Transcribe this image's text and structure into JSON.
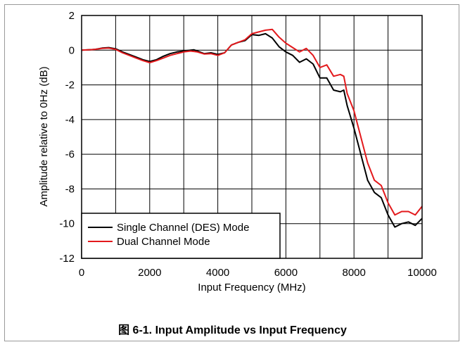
{
  "caption": "图 6-1. Input Amplitude vs Input Frequency",
  "chart_data": {
    "type": "line",
    "xlabel": "Input Frequency (MHz)",
    "ylabel": "Amplitude relative to 0Hz (dB)",
    "xlim": [
      0,
      10000
    ],
    "ylim": [
      -12,
      2
    ],
    "xticks": [
      0,
      2000,
      4000,
      6000,
      8000,
      10000
    ],
    "yticks": [
      2,
      0,
      -2,
      -4,
      -6,
      -8,
      -10,
      -12
    ],
    "x_grid_step": 1000,
    "grid": true,
    "legend_position": "bottom-left",
    "series": [
      {
        "name": "Single Channel (DES) Mode",
        "color": "#000000",
        "points": [
          [
            0,
            0
          ],
          [
            200,
            0.02
          ],
          [
            400,
            0.05
          ],
          [
            600,
            0.12
          ],
          [
            800,
            0.15
          ],
          [
            1000,
            0.08
          ],
          [
            1200,
            -0.1
          ],
          [
            1400,
            -0.25
          ],
          [
            1600,
            -0.4
          ],
          [
            1800,
            -0.55
          ],
          [
            2000,
            -0.65
          ],
          [
            2200,
            -0.55
          ],
          [
            2400,
            -0.35
          ],
          [
            2600,
            -0.2
          ],
          [
            2800,
            -0.1
          ],
          [
            3000,
            -0.05
          ],
          [
            3200,
            0.0
          ],
          [
            3300,
            0.02
          ],
          [
            3400,
            -0.05
          ],
          [
            3600,
            -0.2
          ],
          [
            3800,
            -0.15
          ],
          [
            4000,
            -0.25
          ],
          [
            4200,
            -0.15
          ],
          [
            4400,
            0.3
          ],
          [
            4600,
            0.45
          ],
          [
            4800,
            0.55
          ],
          [
            5000,
            0.9
          ],
          [
            5200,
            0.85
          ],
          [
            5400,
            0.95
          ],
          [
            5600,
            0.7
          ],
          [
            5800,
            0.2
          ],
          [
            6000,
            -0.1
          ],
          [
            6200,
            -0.3
          ],
          [
            6400,
            -0.7
          ],
          [
            6600,
            -0.5
          ],
          [
            6800,
            -0.8
          ],
          [
            7000,
            -1.6
          ],
          [
            7200,
            -1.6
          ],
          [
            7400,
            -2.3
          ],
          [
            7600,
            -2.4
          ],
          [
            7700,
            -2.3
          ],
          [
            7800,
            -3.2
          ],
          [
            8000,
            -4.5
          ],
          [
            8200,
            -6.0
          ],
          [
            8400,
            -7.5
          ],
          [
            8600,
            -8.2
          ],
          [
            8800,
            -8.5
          ],
          [
            9000,
            -9.5
          ],
          [
            9200,
            -10.2
          ],
          [
            9400,
            -10.0
          ],
          [
            9600,
            -9.9
          ],
          [
            9800,
            -10.1
          ],
          [
            10000,
            -9.7
          ]
        ]
      },
      {
        "name": "Dual Channel Mode",
        "color": "#e3191c",
        "points": [
          [
            0,
            0
          ],
          [
            200,
            0.02
          ],
          [
            400,
            0.05
          ],
          [
            600,
            0.1
          ],
          [
            800,
            0.12
          ],
          [
            1000,
            0.05
          ],
          [
            1200,
            -0.15
          ],
          [
            1400,
            -0.3
          ],
          [
            1600,
            -0.45
          ],
          [
            1800,
            -0.6
          ],
          [
            2000,
            -0.72
          ],
          [
            2200,
            -0.6
          ],
          [
            2400,
            -0.45
          ],
          [
            2600,
            -0.3
          ],
          [
            2800,
            -0.2
          ],
          [
            3000,
            -0.1
          ],
          [
            3200,
            -0.05
          ],
          [
            3400,
            -0.1
          ],
          [
            3600,
            -0.22
          ],
          [
            3800,
            -0.2
          ],
          [
            4000,
            -0.3
          ],
          [
            4200,
            -0.15
          ],
          [
            4400,
            0.3
          ],
          [
            4600,
            0.45
          ],
          [
            4800,
            0.6
          ],
          [
            5000,
            0.95
          ],
          [
            5200,
            1.05
          ],
          [
            5400,
            1.15
          ],
          [
            5600,
            1.2
          ],
          [
            5800,
            0.75
          ],
          [
            6000,
            0.4
          ],
          [
            6200,
            0.15
          ],
          [
            6400,
            -0.1
          ],
          [
            6600,
            0.1
          ],
          [
            6800,
            -0.3
          ],
          [
            7000,
            -1.0
          ],
          [
            7200,
            -0.85
          ],
          [
            7400,
            -1.5
          ],
          [
            7600,
            -1.4
          ],
          [
            7700,
            -1.5
          ],
          [
            7800,
            -2.5
          ],
          [
            8000,
            -3.5
          ],
          [
            8200,
            -5.0
          ],
          [
            8400,
            -6.5
          ],
          [
            8600,
            -7.5
          ],
          [
            8800,
            -7.8
          ],
          [
            9000,
            -8.8
          ],
          [
            9200,
            -9.5
          ],
          [
            9400,
            -9.3
          ],
          [
            9600,
            -9.3
          ],
          [
            9800,
            -9.5
          ],
          [
            10000,
            -9.0
          ]
        ]
      }
    ]
  }
}
